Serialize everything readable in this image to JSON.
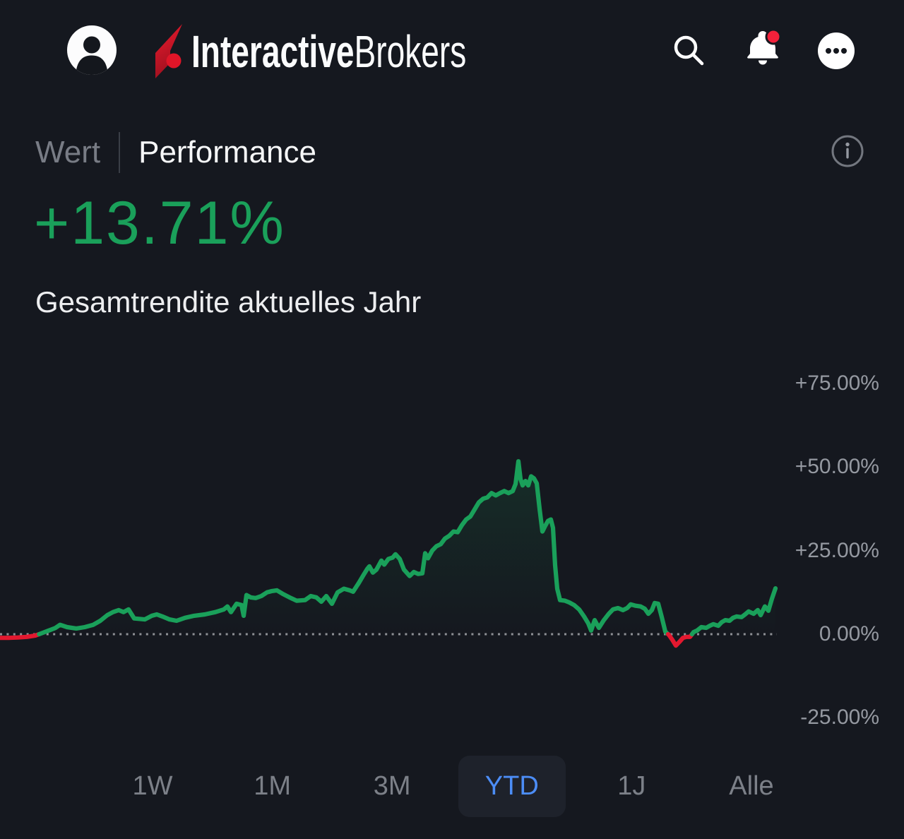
{
  "header": {
    "brand": {
      "bold": "Interactive",
      "light": "Brokers"
    },
    "icons": {
      "avatar": "user-avatar",
      "search": "search-icon",
      "notifications": "bell-icon",
      "menu": "ellipsis-menu-icon"
    },
    "notification_badge": true
  },
  "tabs": [
    {
      "label": "Wert",
      "selected": false
    },
    {
      "label": "Performance",
      "selected": true
    }
  ],
  "summary": {
    "value": "+13.71%",
    "subtitle": "Gesamtrendite aktuelles Jahr"
  },
  "chart_data": {
    "type": "line",
    "title": "Gesamtrendite aktuelles Jahr",
    "unit": "%",
    "x_domain": [
      0,
      1100
    ],
    "ylim": [
      -30,
      83
    ],
    "grid": false,
    "legend": "none",
    "zero_line": {
      "value": 0,
      "style": "dotted",
      "color": "#8e9196"
    },
    "colors": {
      "positive": "#1aa05a",
      "negative": "#e3182f"
    },
    "y_ticks": [
      {
        "label": "+75.00%",
        "value": 75
      },
      {
        "label": "+50.00%",
        "value": 50
      },
      {
        "label": "+25.00%",
        "value": 25
      },
      {
        "label": "0.00%",
        "value": 0
      },
      {
        "label": "-25.00%",
        "value": -25
      }
    ],
    "points": [
      [
        0,
        -1.1
      ],
      [
        12,
        -1.1
      ],
      [
        25,
        -1
      ],
      [
        38,
        -0.8
      ],
      [
        50,
        -0.4
      ],
      [
        58,
        0.2
      ],
      [
        68,
        1
      ],
      [
        78,
        1.8
      ],
      [
        85,
        2.8
      ],
      [
        95,
        2.1
      ],
      [
        108,
        1.7
      ],
      [
        120,
        2.1
      ],
      [
        132,
        2.8
      ],
      [
        142,
        4
      ],
      [
        152,
        5.7
      ],
      [
        160,
        6.6
      ],
      [
        168,
        7.2
      ],
      [
        175,
        6.6
      ],
      [
        182,
        7.4
      ],
      [
        190,
        4.7
      ],
      [
        205,
        4.4
      ],
      [
        215,
        5.5
      ],
      [
        222,
        5.9
      ],
      [
        230,
        5.3
      ],
      [
        240,
        4.4
      ],
      [
        250,
        4
      ],
      [
        262,
        4.9
      ],
      [
        275,
        5.5
      ],
      [
        290,
        5.9
      ],
      [
        305,
        6.6
      ],
      [
        317,
        7.4
      ],
      [
        322,
        8.3
      ],
      [
        327,
        6.6
      ],
      [
        335,
        9.1
      ],
      [
        342,
        8.7
      ],
      [
        345,
        5.5
      ],
      [
        349,
        11.7
      ],
      [
        355,
        11
      ],
      [
        362,
        10.8
      ],
      [
        370,
        11.4
      ],
      [
        378,
        12.5
      ],
      [
        385,
        12.9
      ],
      [
        392,
        13.1
      ],
      [
        400,
        12.1
      ],
      [
        410,
        11
      ],
      [
        420,
        10
      ],
      [
        432,
        10.2
      ],
      [
        440,
        11.4
      ],
      [
        448,
        11
      ],
      [
        455,
        9.7
      ],
      [
        462,
        11.4
      ],
      [
        470,
        9.1
      ],
      [
        478,
        12.5
      ],
      [
        487,
        13.6
      ],
      [
        495,
        13.1
      ],
      [
        500,
        12.7
      ],
      [
        508,
        15.3
      ],
      [
        515,
        17.8
      ],
      [
        520,
        19.5
      ],
      [
        523,
        20.3
      ],
      [
        528,
        18.4
      ],
      [
        533,
        19.3
      ],
      [
        540,
        22
      ],
      [
        544,
        20.8
      ],
      [
        550,
        22.5
      ],
      [
        556,
        22.9
      ],
      [
        560,
        23.9
      ],
      [
        566,
        22.5
      ],
      [
        572,
        19.3
      ],
      [
        580,
        17.4
      ],
      [
        586,
        18.6
      ],
      [
        592,
        18
      ],
      [
        598,
        18.2
      ],
      [
        602,
        24.2
      ],
      [
        606,
        22.7
      ],
      [
        612,
        25
      ],
      [
        618,
        26.3
      ],
      [
        624,
        26.9
      ],
      [
        630,
        28.6
      ],
      [
        636,
        29.4
      ],
      [
        642,
        30.7
      ],
      [
        648,
        30.5
      ],
      [
        654,
        32.6
      ],
      [
        660,
        34.3
      ],
      [
        666,
        35.2
      ],
      [
        672,
        37.3
      ],
      [
        678,
        39.4
      ],
      [
        684,
        40.5
      ],
      [
        690,
        40.9
      ],
      [
        696,
        42.2
      ],
      [
        702,
        41.5
      ],
      [
        708,
        42.2
      ],
      [
        714,
        42.8
      ],
      [
        720,
        42.2
      ],
      [
        726,
        42.8
      ],
      [
        730,
        44.9
      ],
      [
        734,
        51.7
      ],
      [
        737,
        46.4
      ],
      [
        740,
        44.5
      ],
      [
        744,
        45.8
      ],
      [
        748,
        44.5
      ],
      [
        752,
        47.2
      ],
      [
        756,
        46.6
      ],
      [
        760,
        45.1
      ],
      [
        764,
        37.5
      ],
      [
        768,
        30.7
      ],
      [
        772,
        32.4
      ],
      [
        776,
        33.9
      ],
      [
        780,
        34.3
      ],
      [
        783,
        31.8
      ],
      [
        786,
        20.6
      ],
      [
        789,
        13.6
      ],
      [
        793,
        10.2
      ],
      [
        800,
        10
      ],
      [
        806,
        9.5
      ],
      [
        813,
        8.7
      ],
      [
        820,
        7.4
      ],
      [
        827,
        5.3
      ],
      [
        833,
        3.2
      ],
      [
        837,
        1.1
      ],
      [
        842,
        4.2
      ],
      [
        848,
        1.9
      ],
      [
        855,
        4.2
      ],
      [
        862,
        6.1
      ],
      [
        868,
        7.4
      ],
      [
        875,
        7.8
      ],
      [
        882,
        7.2
      ],
      [
        888,
        7.8
      ],
      [
        893,
        8.9
      ],
      [
        900,
        8.5
      ],
      [
        907,
        8.3
      ],
      [
        913,
        7.6
      ],
      [
        918,
        6.1
      ],
      [
        923,
        7.2
      ],
      [
        927,
        9.3
      ],
      [
        932,
        9.1
      ],
      [
        937,
        5.1
      ],
      [
        942,
        0.8
      ],
      [
        947,
        -0.2
      ],
      [
        952,
        -1.7
      ],
      [
        957,
        -3.4
      ],
      [
        962,
        -2.3
      ],
      [
        967,
        -1.1
      ],
      [
        972,
        -0.8
      ],
      [
        977,
        -0.8
      ],
      [
        982,
        0.6
      ],
      [
        987,
        1.1
      ],
      [
        993,
        2.1
      ],
      [
        1000,
        1.9
      ],
      [
        1005,
        2.5
      ],
      [
        1010,
        3
      ],
      [
        1017,
        2.5
      ],
      [
        1022,
        3.6
      ],
      [
        1027,
        4.2
      ],
      [
        1033,
        4
      ],
      [
        1038,
        4.9
      ],
      [
        1043,
        5.3
      ],
      [
        1050,
        5.1
      ],
      [
        1055,
        5.9
      ],
      [
        1060,
        6.8
      ],
      [
        1067,
        6.1
      ],
      [
        1073,
        7.2
      ],
      [
        1077,
        5.7
      ],
      [
        1083,
        8.3
      ],
      [
        1088,
        7
      ],
      [
        1093,
        10.6
      ],
      [
        1098,
        13.71
      ]
    ]
  },
  "timeframes": [
    {
      "label": "1W",
      "selected": false
    },
    {
      "label": "1M",
      "selected": false
    },
    {
      "label": "3M",
      "selected": false
    },
    {
      "label": "YTD",
      "selected": true
    },
    {
      "label": "1J",
      "selected": false
    },
    {
      "label": "Alle",
      "selected": false
    }
  ],
  "colors": {
    "background": "#15181f",
    "accent_green": "#1aa05a",
    "accent_red": "#e3182f",
    "accent_blue": "#4c8df6",
    "text_primary": "#f2f3f5",
    "text_secondary": "#7c8088"
  }
}
